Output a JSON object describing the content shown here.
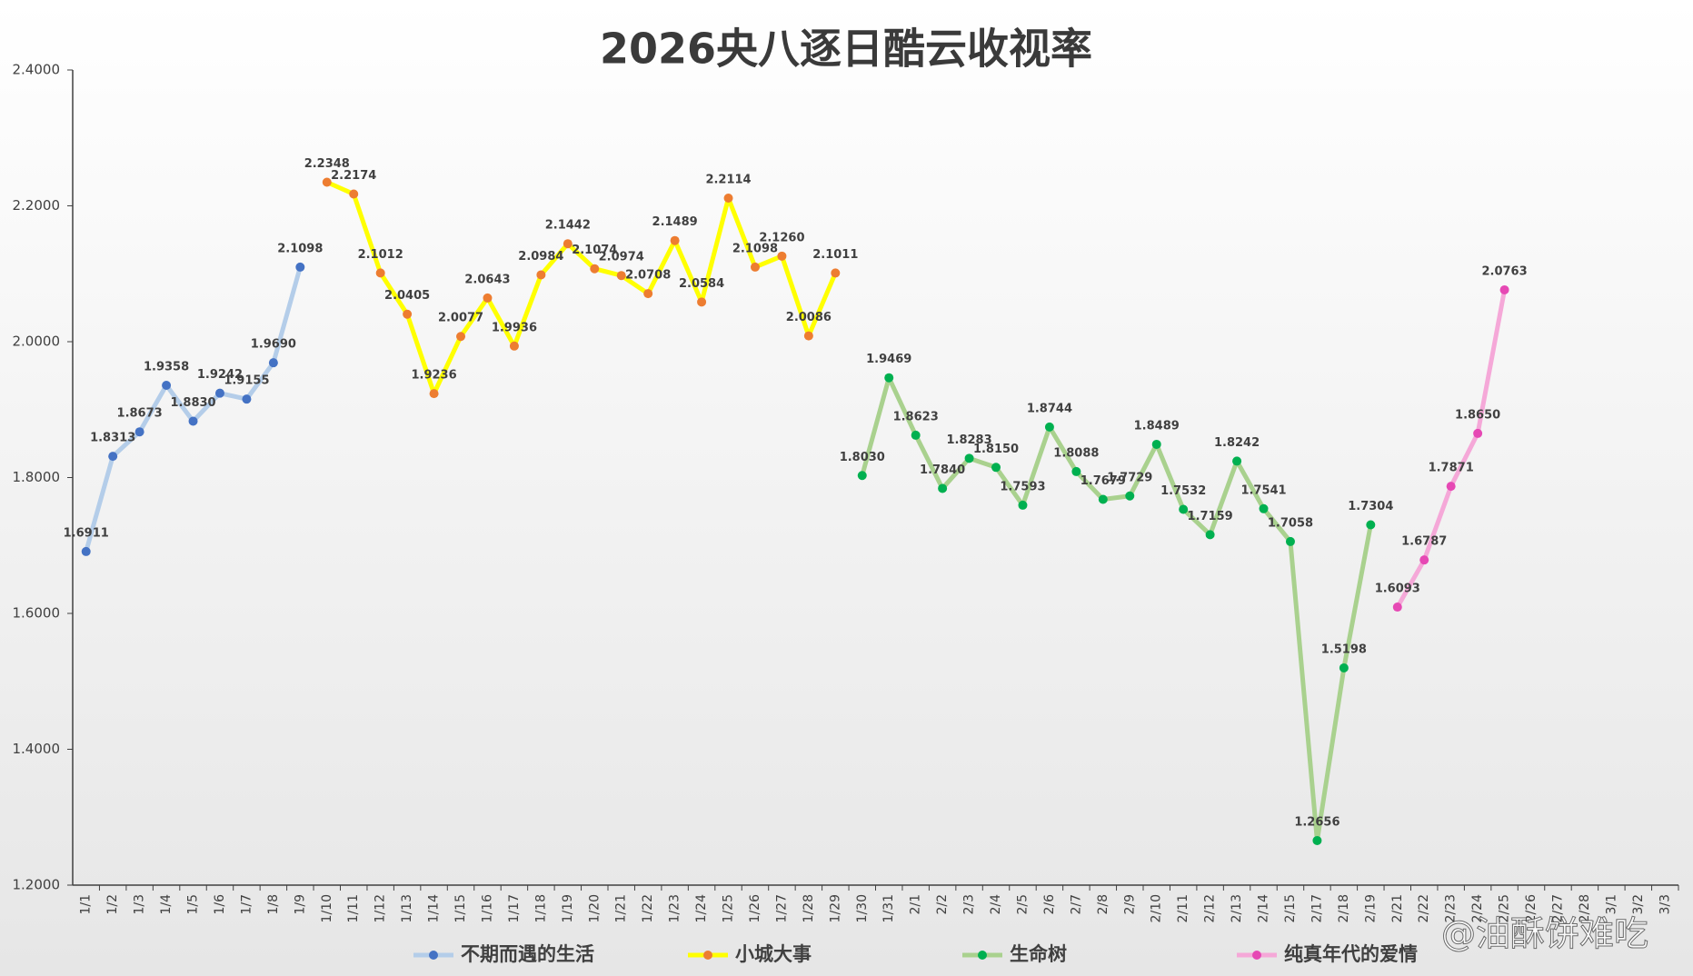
{
  "chart_data": {
    "type": "line",
    "title": "2026央八逐日酷云收视率",
    "watermark": "@油酥饼难吃",
    "categories": [
      "1/1",
      "1/2",
      "1/3",
      "1/4",
      "1/5",
      "1/6",
      "1/7",
      "1/8",
      "1/9",
      "1/10",
      "1/11",
      "1/12",
      "1/13",
      "1/14",
      "1/15",
      "1/16",
      "1/17",
      "1/18",
      "1/19",
      "1/20",
      "1/21",
      "1/22",
      "1/23",
      "1/24",
      "1/25",
      "1/26",
      "1/27",
      "1/28",
      "1/29",
      "1/30",
      "1/31",
      "2/1",
      "2/2",
      "2/3",
      "2/4",
      "2/5",
      "2/6",
      "2/7",
      "2/8",
      "2/9",
      "2/10",
      "2/11",
      "2/12",
      "2/13",
      "2/14",
      "2/15",
      "2/17",
      "2/18",
      "2/19",
      "2/21",
      "2/22",
      "2/23",
      "2/24",
      "2/25",
      "2/26",
      "2/27",
      "2/28",
      "3/1",
      "3/2",
      "3/3"
    ],
    "ylim": [
      1.2,
      2.4
    ],
    "yticks": [
      {
        "value": 1.2,
        "label": "1.2000"
      },
      {
        "value": 1.4,
        "label": "1.4000"
      },
      {
        "value": 1.6,
        "label": "1.6000"
      },
      {
        "value": 1.8,
        "label": "1.8000"
      },
      {
        "value": 2.0,
        "label": "2.0000"
      },
      {
        "value": 2.2,
        "label": "2.2000"
      },
      {
        "value": 2.4,
        "label": "2.4000"
      }
    ],
    "grid": false,
    "legend": "bottom",
    "series": [
      {
        "name": "不期而遇的生活",
        "color": "#4472c4",
        "line_color": "#b4cde9",
        "values": [
          1.6911,
          1.8313,
          1.8673,
          1.9358,
          1.883,
          1.9242,
          1.9155,
          1.969,
          2.1098,
          null,
          null,
          null,
          null,
          null,
          null,
          null,
          null,
          null,
          null,
          null,
          null,
          null,
          null,
          null,
          null,
          null,
          null,
          null,
          null,
          null,
          null,
          null,
          null,
          null,
          null,
          null,
          null,
          null,
          null,
          null,
          null,
          null,
          null,
          null,
          null,
          null,
          null,
          null,
          null,
          null,
          null,
          null,
          null,
          null,
          null,
          null,
          null,
          null,
          null,
          null
        ],
        "value_labels": [
          "1.6911",
          "1.8313",
          "1.8673",
          "1.9358",
          "1.8830",
          "1.9242",
          "1.9155",
          "1.9690",
          "2.1098",
          null,
          null,
          null,
          null,
          null,
          null,
          null,
          null,
          null,
          null,
          null,
          null,
          null,
          null,
          null,
          null,
          null,
          null,
          null,
          null,
          null,
          null,
          null,
          null,
          null,
          null,
          null,
          null,
          null,
          null,
          null,
          null,
          null,
          null,
          null,
          null,
          null,
          null,
          null,
          null,
          null,
          null,
          null,
          null,
          null,
          null,
          null,
          null,
          null,
          null,
          null
        ]
      },
      {
        "name": "小城大事",
        "color": "#ed7d31",
        "line_color": "#ffff00",
        "values": [
          null,
          null,
          null,
          null,
          null,
          null,
          null,
          null,
          null,
          2.2348,
          2.2174,
          2.1012,
          2.0405,
          1.9236,
          2.0077,
          2.0643,
          1.9936,
          2.0984,
          2.1442,
          2.1074,
          2.0974,
          2.0708,
          2.1489,
          2.0584,
          2.2114,
          2.1098,
          2.126,
          2.0086,
          2.1011,
          null,
          null,
          null,
          null,
          null,
          null,
          null,
          null,
          null,
          null,
          null,
          null,
          null,
          null,
          null,
          null,
          null,
          null,
          null,
          null,
          null,
          null,
          null,
          null,
          null,
          null,
          null,
          null,
          null,
          null,
          null
        ],
        "value_labels": [
          null,
          null,
          null,
          null,
          null,
          null,
          null,
          null,
          null,
          "2.2348",
          "2.2174",
          "2.1012",
          "2.0405",
          "1.9236",
          "2.0077",
          "2.0643",
          "1.9936",
          "2.0984",
          "2.1442",
          "2.1074",
          "2.0974",
          "2.0708",
          "2.1489",
          "2.0584",
          "2.2114",
          "2.1098",
          "2.1260",
          "2.0086",
          "2.1011",
          null,
          null,
          null,
          null,
          null,
          null,
          null,
          null,
          null,
          null,
          null,
          null,
          null,
          null,
          null,
          null,
          null,
          null,
          null,
          null,
          null,
          null,
          null,
          null,
          null,
          null,
          null,
          null,
          null,
          null,
          null
        ]
      },
      {
        "name": "生命树",
        "color": "#00b050",
        "line_color": "#a9d18e",
        "values": [
          null,
          null,
          null,
          null,
          null,
          null,
          null,
          null,
          null,
          null,
          null,
          null,
          null,
          null,
          null,
          null,
          null,
          null,
          null,
          null,
          null,
          null,
          null,
          null,
          null,
          null,
          null,
          null,
          null,
          1.803,
          1.9469,
          1.8623,
          1.784,
          1.8283,
          1.815,
          1.7593,
          1.8744,
          1.8088,
          1.7679,
          1.7729,
          1.8489,
          1.7532,
          1.7159,
          1.8242,
          1.7541,
          1.7058,
          1.2656,
          1.5198,
          1.7304,
          null,
          null,
          null,
          null,
          null,
          null,
          null,
          null,
          null,
          null,
          null
        ],
        "value_labels": [
          null,
          null,
          null,
          null,
          null,
          null,
          null,
          null,
          null,
          null,
          null,
          null,
          null,
          null,
          null,
          null,
          null,
          null,
          null,
          null,
          null,
          null,
          null,
          null,
          null,
          null,
          null,
          null,
          null,
          "1.8030",
          "1.9469",
          "1.8623",
          "1.7840",
          "1.8283",
          "1.8150",
          "1.7593",
          "1.8744",
          "1.8088",
          "1.7679",
          "1.7729",
          "1.8489",
          "1.7532",
          "1.7159",
          "1.8242",
          "1.7541",
          "1.7058",
          "1.2656",
          "1.5198",
          "1.7304",
          null,
          null,
          null,
          null,
          null,
          null,
          null,
          null,
          null,
          null,
          null
        ]
      },
      {
        "name": "纯真年代的爱情",
        "color": "#e648b4",
        "line_color": "#f5a8d8",
        "values": [
          null,
          null,
          null,
          null,
          null,
          null,
          null,
          null,
          null,
          null,
          null,
          null,
          null,
          null,
          null,
          null,
          null,
          null,
          null,
          null,
          null,
          null,
          null,
          null,
          null,
          null,
          null,
          null,
          null,
          null,
          null,
          null,
          null,
          null,
          null,
          null,
          null,
          null,
          null,
          null,
          null,
          null,
          null,
          null,
          null,
          null,
          null,
          null,
          null,
          1.6093,
          1.6787,
          1.7871,
          1.865,
          2.0763,
          null,
          null,
          null,
          null,
          null,
          null
        ],
        "value_labels": [
          null,
          null,
          null,
          null,
          null,
          null,
          null,
          null,
          null,
          null,
          null,
          null,
          null,
          null,
          null,
          null,
          null,
          null,
          null,
          null,
          null,
          null,
          null,
          null,
          null,
          null,
          null,
          null,
          null,
          null,
          null,
          null,
          null,
          null,
          null,
          null,
          null,
          null,
          null,
          null,
          null,
          null,
          null,
          null,
          null,
          null,
          null,
          null,
          null,
          "1.6093",
          "1.6787",
          "1.7871",
          "1.8650",
          "2.0763",
          null,
          null,
          null,
          null,
          null,
          null
        ]
      }
    ]
  }
}
